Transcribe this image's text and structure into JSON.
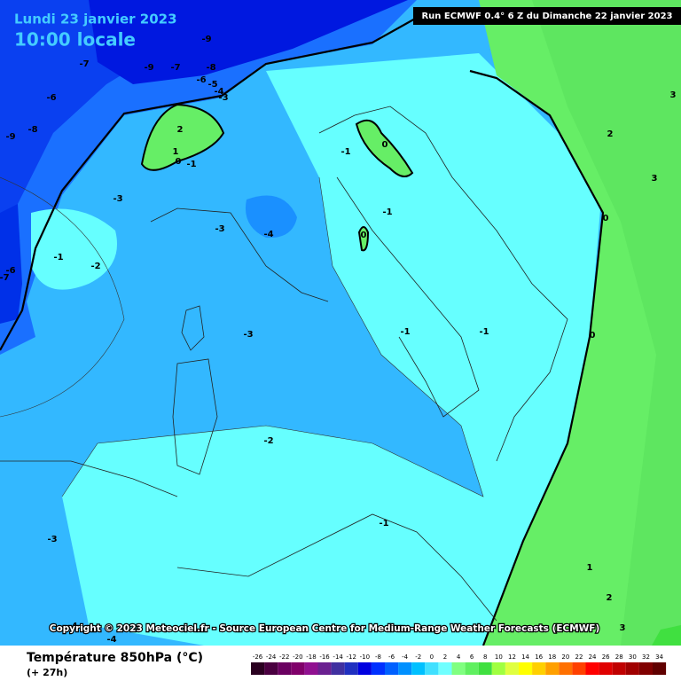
{
  "header": {
    "date": "Lundi 23 janvier 2023",
    "time": "10:00 locale",
    "run": "Run ECMWF 0.4° 6 Z du Dimanche 22 janvier 2023"
  },
  "copyright": "Copyright © 2023 Meteociel.fr - Source European Centre for Medium-Range Weather Forecasts (ECMWF)",
  "footer": {
    "title": "Température 850hPa (°C)",
    "lead": "(+ 27h)"
  },
  "legend": {
    "ticks": [
      -26,
      -24,
      -22,
      -20,
      -18,
      -16,
      -14,
      -12,
      -10,
      -8,
      -6,
      -4,
      -2,
      0,
      2,
      4,
      6,
      8,
      10,
      12,
      14,
      16,
      18,
      20,
      22,
      24,
      26,
      28,
      30,
      32,
      34
    ],
    "colors": [
      "#2a0020",
      "#4a0040",
      "#6a0060",
      "#80006a",
      "#901090",
      "#6a2090",
      "#4030a0",
      "#2030c0",
      "#0000e0",
      "#0030ff",
      "#0060ff",
      "#0090ff",
      "#00c0ff",
      "#40e0ff",
      "#70ffff",
      "#80ff80",
      "#60f060",
      "#40e040",
      "#a0ff40",
      "#e0ff40",
      "#ffff00",
      "#ffd000",
      "#ffa000",
      "#ff7000",
      "#ff4000",
      "#ff0000",
      "#e00000",
      "#c00000",
      "#a00000",
      "#800000",
      "#600000"
    ]
  },
  "contour_labels": [
    -9,
    -7,
    -9,
    -7,
    -8,
    -6,
    -6,
    -5,
    -4,
    -3,
    -9,
    -8,
    2,
    1,
    0,
    -1,
    -3,
    -3,
    -4,
    -1,
    0,
    -1,
    0,
    -1,
    -2,
    -6,
    -7,
    -3,
    -1,
    -1,
    0,
    -2,
    -3,
    -1,
    -4,
    -4,
    2,
    3,
    0,
    3,
    1,
    2,
    3
  ]
}
